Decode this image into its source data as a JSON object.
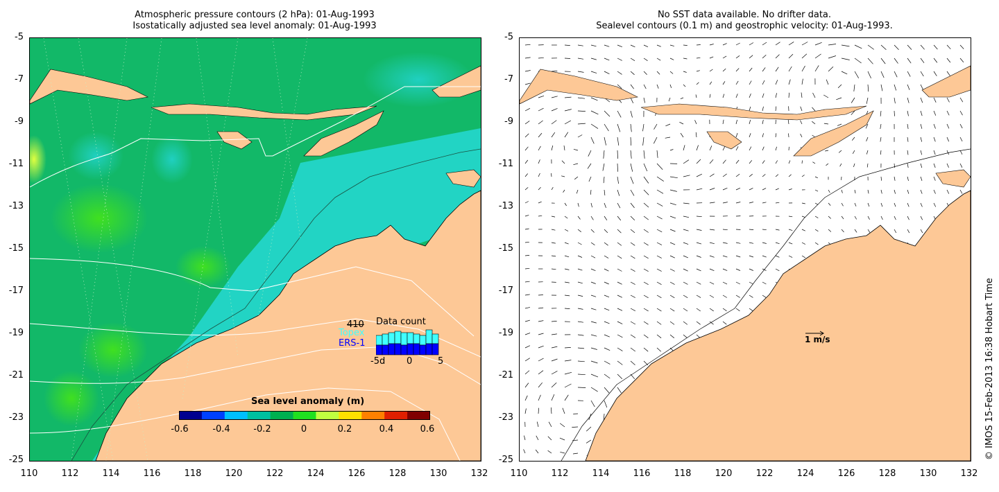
{
  "left_panel": {
    "title_line1": "Atmospheric pressure contours (2 hPa): 01-Aug-1993",
    "title_line2": "Isostatically adjusted sea level anomaly: 01-Aug-1993",
    "y_ticks": [
      "-5",
      "-7",
      "-9",
      "-11",
      "-13",
      "-15",
      "-17",
      "-19",
      "-21",
      "-23",
      "-25"
    ],
    "x_ticks": [
      "110",
      "112",
      "114",
      "116",
      "118",
      "120",
      "122",
      "124",
      "126",
      "128",
      "130",
      "132"
    ],
    "colorbar": {
      "title": "Sea level anomaly (m)",
      "labels": [
        "-0.6",
        "-0.4",
        "-0.2",
        "0",
        "0.2",
        "0.4",
        "0.6"
      ],
      "colors": [
        "#00008f",
        "#0040ff",
        "#00bfff",
        "#00c0a0",
        "#00b050",
        "#20e020",
        "#c0ff40",
        "#ffe000",
        "#ff8000",
        "#e02000",
        "#800000"
      ]
    },
    "data_count": {
      "title": "Data count",
      "max_label": "410",
      "topex_label": "Topex",
      "ers_label": "ERS-1",
      "x_labels": [
        "-5d",
        "0",
        "5"
      ],
      "topex_color": "#40ffff",
      "ers_color": "#0000ff",
      "topex_values": [
        0.7,
        0.75,
        0.8,
        0.85,
        0.8,
        0.8,
        0.75,
        0.7,
        0.9,
        0.75
      ],
      "ers_values": [
        0.35,
        0.35,
        0.4,
        0.4,
        0.35,
        0.4,
        0.4,
        0.35,
        0.4,
        0.4
      ]
    }
  },
  "right_panel": {
    "title_line1": "No SST data available.  No drifter data.",
    "title_line2": "Sealevel contours (0.1 m) and geostrophic velocity: 01-Aug-1993.",
    "y_ticks": [
      "-5",
      "-7",
      "-9",
      "-11",
      "-13",
      "-15",
      "-17",
      "-19",
      "-21",
      "-23",
      "-25"
    ],
    "x_ticks": [
      "110",
      "112",
      "114",
      "116",
      "118",
      "120",
      "122",
      "124",
      "126",
      "128",
      "130",
      "132"
    ],
    "velocity_scale_label": "1 m/s"
  },
  "credit": "© IMOS 15-Feb-2013 16:38 Hobart Time",
  "colors": {
    "land": "#fdc896",
    "ocean_base": "#10c070",
    "shelf": "#20d8c0"
  }
}
